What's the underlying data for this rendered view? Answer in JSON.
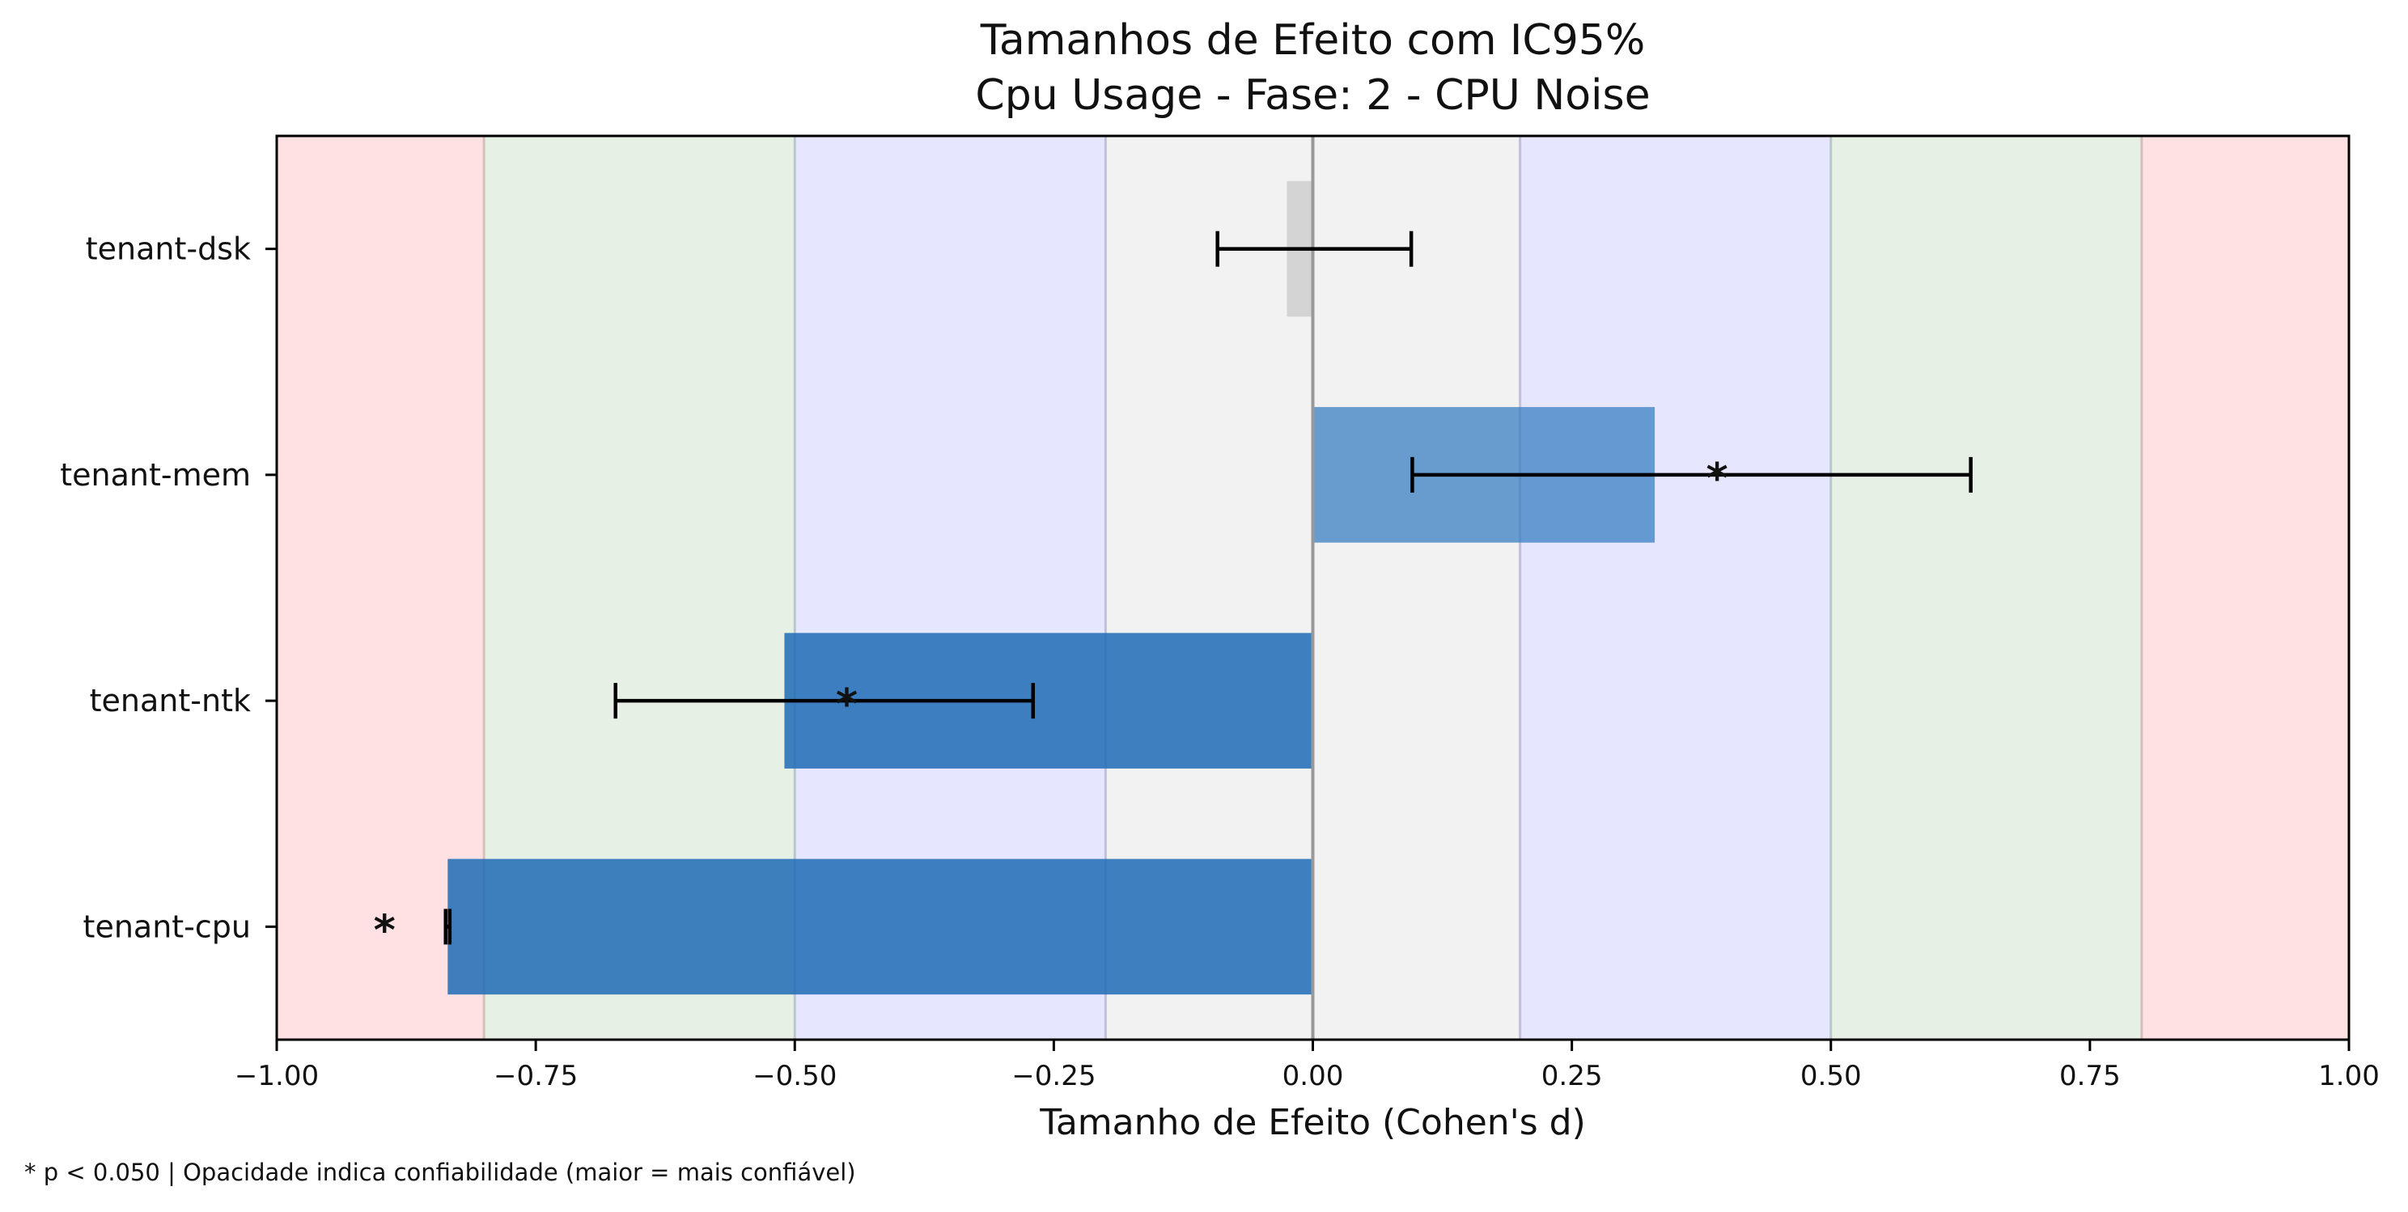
{
  "chart_data": {
    "type": "bar",
    "orientation": "horizontal",
    "title": "Tamanhos de Efeito com IC95%",
    "subtitle": "Cpu Usage - Fase: 2 - CPU Noise",
    "xlabel": "Tamanho de Efeito (Cohen's d)",
    "ylabel": "",
    "xlim": [
      -1.0,
      1.0
    ],
    "xticks": [
      -1.0,
      -0.75,
      -0.5,
      -0.25,
      0.0,
      0.25,
      0.5,
      0.75,
      1.0
    ],
    "xtick_labels": [
      "−1.00",
      "−0.75",
      "−0.50",
      "−0.25",
      "0.00",
      "0.25",
      "0.50",
      "0.75",
      "1.00"
    ],
    "categories": [
      "tenant-dsk",
      "tenant-mem",
      "tenant-ntk",
      "tenant-cpu"
    ],
    "values": [
      -0.025,
      0.33,
      -0.51,
      -0.835
    ],
    "ci_low": [
      -0.092,
      0.096,
      -0.673,
      -0.837
    ],
    "ci_high": [
      0.095,
      0.635,
      -0.27,
      -0.833
    ],
    "significant": [
      false,
      true,
      true,
      true
    ],
    "significance_marker": "*",
    "bar_colors": [
      "#cccccc",
      "#3a7fc1",
      "#1f6bb6",
      "#1f6bb6"
    ],
    "bar_alphas": [
      0.8,
      0.75,
      0.85,
      0.85
    ],
    "bands": [
      {
        "from": -1.0,
        "to": -0.8,
        "color": "#ffe1e4"
      },
      {
        "from": -0.8,
        "to": -0.5,
        "color": "#e6f0e4"
      },
      {
        "from": -0.5,
        "to": -0.2,
        "color": "#e6e6ff"
      },
      {
        "from": -0.2,
        "to": 0.2,
        "color": "#f2f2f2"
      },
      {
        "from": 0.2,
        "to": 0.5,
        "color": "#e6e6ff"
      },
      {
        "from": 0.5,
        "to": 0.8,
        "color": "#e6f0e4"
      },
      {
        "from": 0.8,
        "to": 1.0,
        "color": "#ffe1e4"
      }
    ],
    "grid": false,
    "legend": "none"
  },
  "footnote": "* p < 0.050  |  Opacidade indica confiabilidade (maior = mais confiável)"
}
